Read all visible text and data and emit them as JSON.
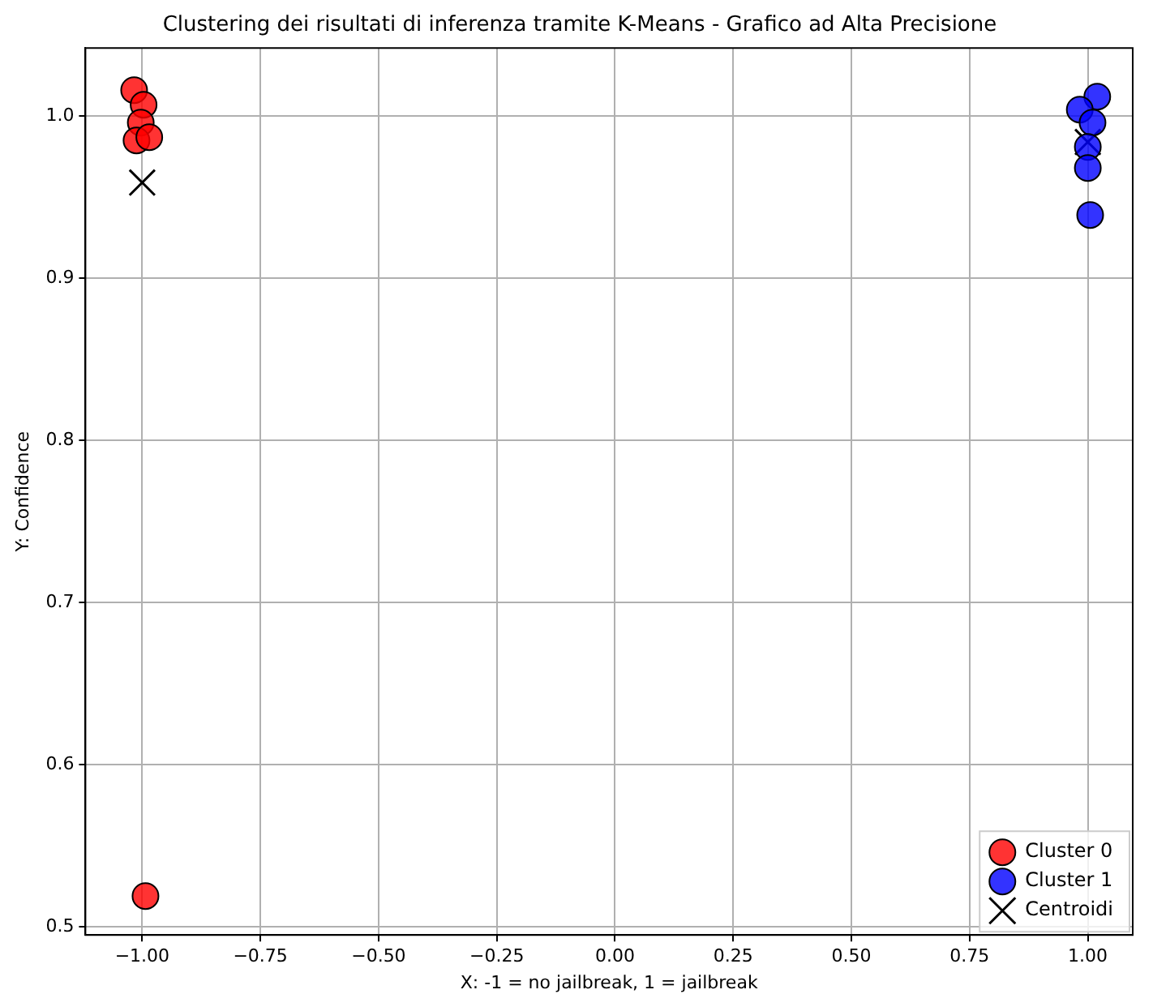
{
  "chart_data": {
    "type": "scatter",
    "title": "Clustering dei risultati di inferenza tramite K-Means - Grafico ad Alta Precisione",
    "xlabel": "X: -1 = no jailbreak, 1 = jailbreak",
    "ylabel": "Y: Confidence",
    "xlim": [
      -1.12,
      1.095
    ],
    "ylim": [
      0.495,
      1.042
    ],
    "xticks": [
      {
        "value": -1,
        "label": "−1.00"
      },
      {
        "value": -0.75,
        "label": "−0.75"
      },
      {
        "value": -0.5,
        "label": "−0.50"
      },
      {
        "value": -0.25,
        "label": "−0.25"
      },
      {
        "value": 0,
        "label": "0.00"
      },
      {
        "value": 0.25,
        "label": "0.25"
      },
      {
        "value": 0.5,
        "label": "0.50"
      },
      {
        "value": 0.75,
        "label": "0.75"
      },
      {
        "value": 1,
        "label": "1.00"
      }
    ],
    "yticks": [
      {
        "value": 0.5,
        "label": "0.5"
      },
      {
        "value": 0.6,
        "label": "0.6"
      },
      {
        "value": 0.7,
        "label": "0.7"
      },
      {
        "value": 0.8,
        "label": "0.8"
      },
      {
        "value": 0.9,
        "label": "0.9"
      },
      {
        "value": 1,
        "label": "1.0"
      }
    ],
    "grid": true,
    "legend": "bottom right",
    "series": [
      {
        "name": "Cluster 0",
        "color": "#ff0000",
        "marker": "circle",
        "x": [
          -1.017,
          -0.997,
          -1.003,
          -1.012,
          -0.985,
          -0.993
        ],
        "values": [
          1.016,
          1.007,
          0.996,
          0.985,
          0.987,
          0.519
        ]
      },
      {
        "name": "Cluster 1",
        "color": "#0000ff",
        "marker": "circle",
        "x": [
          1.02,
          0.983,
          1.01,
          1.0,
          1.0,
          1.005
        ],
        "values": [
          1.012,
          1.004,
          0.996,
          0.981,
          0.968,
          0.939
        ]
      },
      {
        "name": "Centroidi",
        "color": "#000000",
        "marker": "cross",
        "x": [
          -1.0,
          1.0
        ],
        "values": [
          0.959,
          0.984
        ]
      }
    ]
  }
}
